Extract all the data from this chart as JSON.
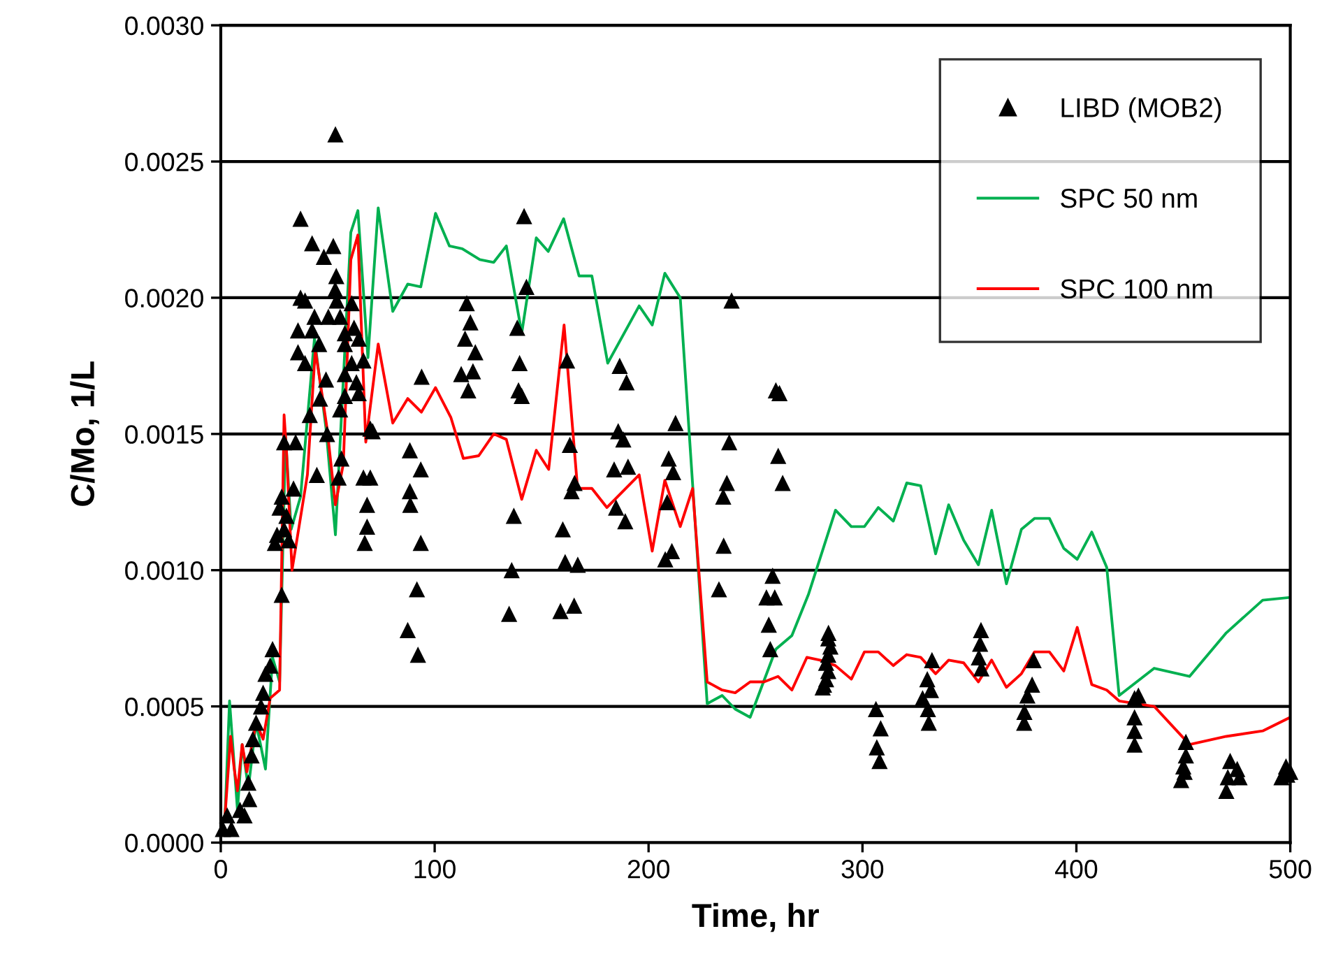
{
  "chart_data": {
    "type": "line",
    "xlabel": "Time, hr",
    "ylabel": "C/Mo, 1/L",
    "xlim": [
      0,
      500
    ],
    "xticks": [
      0,
      100,
      200,
      300,
      400,
      500
    ],
    "ylim": [
      0,
      0.003
    ],
    "yticks": [
      {
        "value": 0,
        "label": "0.0000"
      },
      {
        "value": 0.0005,
        "label": "0.0005"
      },
      {
        "value": 0.001,
        "label": "0.0010"
      },
      {
        "value": 0.0015,
        "label": "0.0015"
      },
      {
        "value": 0.002,
        "label": "0.0020"
      },
      {
        "value": 0.0025,
        "label": "0.0025"
      },
      {
        "value": 0.003,
        "label": "0.0030"
      }
    ],
    "grid": "y",
    "legend": "top right",
    "series": [
      {
        "name": "LIBD (MOB2)",
        "type": "scatter",
        "marker": "triangle",
        "color": "#000000",
        "x": [
          1,
          3,
          5,
          9,
          11.1,
          13.3,
          12.9,
          14.4,
          15,
          16.5,
          18.8,
          19.8,
          20.9,
          23.1,
          24.2,
          25.3,
          26.3,
          31.8,
          29.6,
          30.7,
          34,
          27.5,
          28.5,
          28.5,
          29.6,
          35,
          37.3,
          42.7,
          48.2,
          52.6,
          53.6,
          54,
          53.5,
          54.2,
          37.3,
          39.4,
          43.8,
          42.7,
          46,
          36.1,
          39.4,
          36.1,
          50.3,
          55.8,
          61.2,
          58,
          62.3,
          58,
          64.5,
          66.7,
          61.2,
          58,
          63.4,
          64.5,
          58,
          55.8,
          49.2,
          46.4,
          41.6,
          49.7,
          56.4,
          55.1,
          44.9,
          69.9,
          66.7,
          69.9,
          68.4,
          68.4,
          67.3,
          71,
          88.4,
          93.5,
          88.4,
          88.6,
          93.5,
          91.7,
          87.4,
          92.2,
          93.9,
          115,
          116.7,
          114.2,
          119,
          112.4,
          117.9,
          115.7,
          141.8,
          142.9,
          138.6,
          139.7,
          139.2,
          140.7,
          137,
          136,
          134.8,
          161.9,
          163.2,
          165.4,
          164,
          159.9,
          161,
          166.9,
          158.8,
          165.2,
          186.5,
          189.7,
          185.8,
          188.2,
          183.9,
          190.4,
          184.8,
          189.1,
          212.6,
          209.4,
          211.5,
          208.7,
          207.8,
          210.9,
          238.8,
          237.7,
          236.6,
          234.9,
          235.1,
          232.9,
          259.5,
          261.2,
          260.6,
          262.7,
          258,
          255.1,
          259,
          256.2,
          256.9,
          282,
          283,
          284,
          283,
          284,
          285,
          284,
          284.1,
          281.4,
          306.3,
          308.5,
          306.7,
          308,
          332.5,
          330.3,
          332,
          328.1,
          330.6,
          331,
          355.4,
          355,
          354.4,
          355.6,
          379.3,
          380,
          377.1,
          375.6,
          375.7,
          427.2,
          429,
          427.2,
          427.2,
          427.2,
          451.2,
          451.2,
          450,
          449,
          450.6,
          471.9,
          475.2,
          470.8,
          470.1,
          476.3,
          498,
          500,
          495.9,
          498.6
        ],
        "values": [
          5e-05,
          0.0001,
          5e-05,
          0.00012,
          0.0001,
          0.00016,
          0.00022,
          0.00032,
          0.00038,
          0.00044,
          0.0005,
          0.00055,
          0.00062,
          0.00065,
          0.00071,
          0.0011,
          0.00113,
          0.00111,
          0.00115,
          0.0012,
          0.0013,
          0.00123,
          0.00127,
          0.00091,
          0.00147,
          0.00147,
          0.00229,
          0.0022,
          0.00215,
          0.00219,
          0.0026,
          0.00208,
          0.00203,
          0.00199,
          0.002,
          0.00199,
          0.00193,
          0.00188,
          0.00183,
          0.00188,
          0.00176,
          0.0018,
          0.00193,
          0.00193,
          0.00198,
          0.00187,
          0.00189,
          0.00183,
          0.00185,
          0.00177,
          0.00176,
          0.00172,
          0.00169,
          0.00165,
          0.00164,
          0.00159,
          0.0017,
          0.00163,
          0.00157,
          0.0015,
          0.00141,
          0.00134,
          0.00135,
          0.00152,
          0.00134,
          0.00134,
          0.00124,
          0.00116,
          0.0011,
          0.00151,
          0.00144,
          0.00137,
          0.00129,
          0.00124,
          0.0011,
          0.00093,
          0.00078,
          0.00069,
          0.00171,
          0.00198,
          0.00191,
          0.00185,
          0.0018,
          0.00172,
          0.00173,
          0.00166,
          0.0023,
          0.00204,
          0.00189,
          0.00176,
          0.00166,
          0.00164,
          0.0012,
          0.001,
          0.00084,
          0.00177,
          0.00146,
          0.00132,
          0.00129,
          0.00115,
          0.00103,
          0.00102,
          0.00085,
          0.00087,
          0.00175,
          0.00169,
          0.00151,
          0.00148,
          0.00137,
          0.00138,
          0.00123,
          0.00118,
          0.00154,
          0.00141,
          0.00136,
          0.00125,
          0.00104,
          0.00107,
          0.00199,
          0.00147,
          0.00132,
          0.00127,
          0.00109,
          0.00093,
          0.00166,
          0.00165,
          0.00142,
          0.00132,
          0.00098,
          0.0009,
          0.0009,
          0.0008,
          0.00071,
          0.00058,
          0.0006,
          0.00063,
          0.00066,
          0.00069,
          0.00072,
          0.00075,
          0.00077,
          0.00057,
          0.00049,
          0.00042,
          0.00035,
          0.0003,
          0.00067,
          0.0006,
          0.00056,
          0.00053,
          0.00049,
          0.00044,
          0.00078,
          0.00073,
          0.00068,
          0.00064,
          0.00058,
          0.00067,
          0.00054,
          0.00044,
          0.00048,
          0.00053,
          0.00054,
          0.00046,
          0.00041,
          0.00036,
          0.00037,
          0.00032,
          0.00028,
          0.00023,
          0.00026,
          0.0003,
          0.00027,
          0.00024,
          0.00019,
          0.00024,
          0.00028,
          0.00026,
          0.00024,
          0.00025
        ]
      },
      {
        "name": "SPC 50 nm",
        "color": "#00b050",
        "x": [
          2,
          4.1,
          7.8,
          10,
          12.9,
          16.5,
          20.9,
          24.2,
          27.5,
          30.3,
          32.9,
          37.3,
          43.8,
          49.2,
          53.6,
          60.8,
          64.1,
          68.8,
          73.6,
          80.4,
          87.4,
          93.5,
          100.4,
          106.9,
          112.9,
          121.1,
          127.6,
          133.5,
          140.7,
          147.5,
          153.1,
          160.3,
          167.5,
          173.5,
          180.9,
          195.6,
          201.7,
          207.6,
          214.8,
          227.4,
          234.4,
          240.5,
          247.5,
          259.5,
          267,
          274.7,
          287.4,
          294.8,
          300.9,
          307.4,
          314.4,
          320.7,
          327.2,
          334.2,
          340.3,
          347.3,
          354.2,
          360.4,
          367.3,
          374.3,
          380.4,
          387.4,
          394.1,
          400.4,
          407.2,
          414.2,
          420,
          436.4,
          452.9,
          470.1,
          487.1,
          500
        ],
        "values": [
          0.0001,
          0.00052,
          0.00012,
          0.00036,
          0.0002,
          0.00044,
          0.00027,
          0.00068,
          0.00059,
          0.00149,
          0.00115,
          0.00127,
          0.00185,
          0.00152,
          0.00113,
          0.00224,
          0.00232,
          0.00178,
          0.00233,
          0.00195,
          0.00205,
          0.00204,
          0.00231,
          0.00219,
          0.00218,
          0.00214,
          0.00213,
          0.00219,
          0.00187,
          0.00222,
          0.00217,
          0.00229,
          0.00208,
          0.00208,
          0.00176,
          0.00197,
          0.0019,
          0.00209,
          0.002,
          0.00051,
          0.00054,
          0.00049,
          0.00046,
          0.00071,
          0.00076,
          0.00091,
          0.00122,
          0.00116,
          0.00116,
          0.00123,
          0.00118,
          0.00132,
          0.00131,
          0.00106,
          0.00124,
          0.00111,
          0.00102,
          0.00122,
          0.00095,
          0.00115,
          0.00119,
          0.00119,
          0.00108,
          0.00104,
          0.00114,
          0.00101,
          0.00054,
          0.00064,
          0.00061,
          0.00077,
          0.00089,
          0.0009
        ]
      },
      {
        "name": "SPC 100 nm",
        "color": "#ff0000",
        "x": [
          2,
          4.6,
          6.3,
          7.8,
          10,
          12.2,
          16.5,
          19.8,
          23.1,
          27.5,
          29.6,
          30.7,
          33.3,
          40.5,
          44.2,
          49.7,
          53.6,
          57.3,
          60.8,
          64.1,
          67.8,
          73.6,
          80.4,
          87.4,
          93.8,
          100.4,
          107.6,
          113.4,
          120.6,
          127.6,
          133.5,
          140.7,
          147.5,
          153.3,
          160.5,
          166.8,
          173.5,
          180.5,
          195.6,
          201.7,
          207.6,
          214.8,
          220.6,
          227.4,
          234.4,
          240.5,
          247.5,
          254,
          260.5,
          267,
          274,
          280.1,
          287.3,
          294.8,
          300.9,
          307.4,
          314.4,
          320.7,
          327.2,
          334.2,
          340.3,
          347.3,
          354.2,
          360.4,
          367.3,
          374.3,
          380.4,
          387.4,
          394.1,
          400.4,
          407.2,
          414.2,
          420,
          436.4,
          452.9,
          470.1,
          487.1,
          500
        ],
        "values": [
          0.0001,
          0.00039,
          0.00027,
          0.00019,
          0.00036,
          0.00026,
          0.00044,
          0.00038,
          0.00053,
          0.00056,
          0.00157,
          0.00144,
          0.001,
          0.00135,
          0.00181,
          0.00152,
          0.00124,
          0.00139,
          0.00214,
          0.00223,
          0.00147,
          0.00183,
          0.00154,
          0.00163,
          0.00158,
          0.00167,
          0.00156,
          0.00141,
          0.00142,
          0.0015,
          0.00148,
          0.00126,
          0.00144,
          0.00137,
          0.0019,
          0.0013,
          0.0013,
          0.00123,
          0.00135,
          0.00107,
          0.00133,
          0.00116,
          0.0013,
          0.00059,
          0.00056,
          0.00055,
          0.00059,
          0.00059,
          0.00061,
          0.00056,
          0.00068,
          0.00067,
          0.00065,
          0.0006,
          0.0007,
          0.0007,
          0.00065,
          0.00069,
          0.00068,
          0.00062,
          0.00067,
          0.00066,
          0.00059,
          0.00067,
          0.00057,
          0.00062,
          0.0007,
          0.0007,
          0.00063,
          0.00079,
          0.00058,
          0.00056,
          0.00052,
          0.0005,
          0.00036,
          0.00039,
          0.00041,
          0.00046
        ]
      }
    ]
  }
}
